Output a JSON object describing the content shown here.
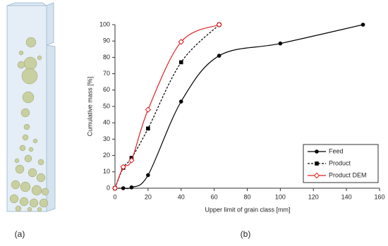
{
  "panel_labels": [
    "(a)",
    "(b)"
  ],
  "chart_data": {
    "type": "line",
    "x_label": "Upper limit of grain class [mm]",
    "y_label": "Cumulative mass [%]",
    "xlim": [
      0,
      160
    ],
    "xticks": [
      0,
      20,
      40,
      60,
      80,
      100,
      120,
      140,
      160
    ],
    "ylim": [
      0,
      100
    ],
    "yticks": [
      0,
      10,
      20,
      30,
      40,
      50,
      60,
      70,
      80,
      90,
      100
    ],
    "grid": false,
    "legend": "lower right",
    "series": [
      {
        "name": "Feed",
        "color": "#000000",
        "marker": "circle",
        "dash": false,
        "x": [
          0,
          5,
          10,
          20,
          40,
          63,
          100,
          150
        ],
        "values": [
          0,
          0,
          0.5,
          8,
          53,
          81,
          88.5,
          100
        ]
      },
      {
        "name": "Product",
        "color": "#000000",
        "marker": "square",
        "dash": true,
        "x": [
          0,
          5,
          10,
          20,
          40,
          63
        ],
        "values": [
          0,
          12.5,
          18.5,
          36.5,
          77,
          100
        ]
      },
      {
        "name": "Product DEM",
        "color": "#e02020",
        "marker": "diamond",
        "dash": false,
        "x": [
          0,
          5,
          10,
          20,
          40,
          63
        ],
        "values": [
          0,
          13,
          17,
          48,
          89.5,
          100
        ]
      }
    ]
  }
}
